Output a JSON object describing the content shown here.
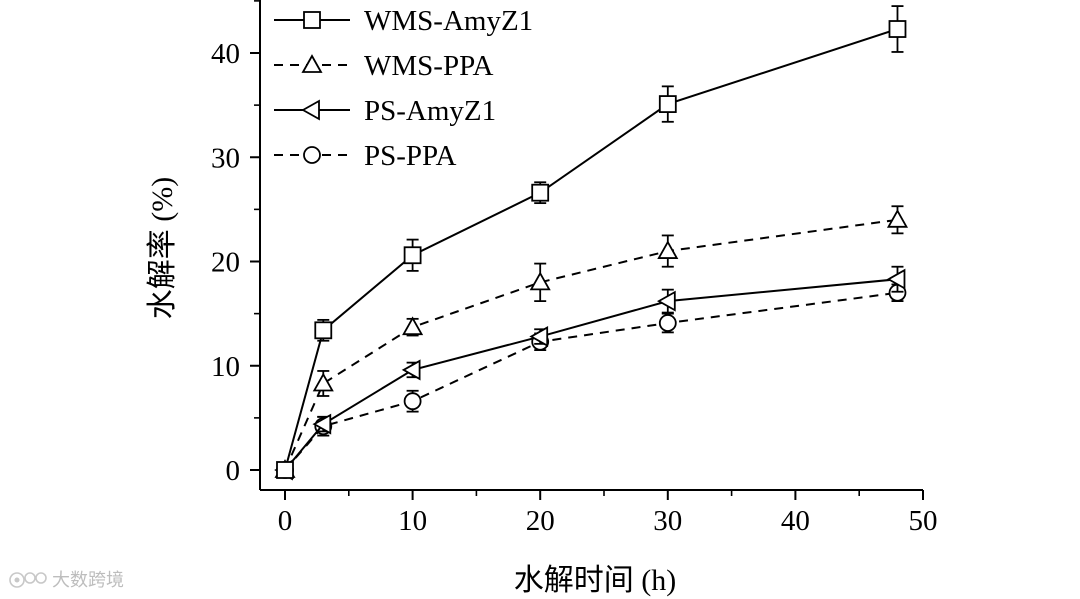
{
  "chart_data": {
    "type": "line",
    "xlabel": "水解时间 (h)",
    "ylabel": "水解率 (%)",
    "xlim": [
      -2,
      50
    ],
    "ylim": [
      -2,
      45
    ],
    "xticks": [
      0,
      10,
      20,
      30,
      40,
      50
    ],
    "yticks": [
      0,
      10,
      20,
      30,
      40
    ],
    "legend_position": "top-left",
    "grid": false,
    "series": [
      {
        "name": "WMS-AmyZ1",
        "marker": "square",
        "dash": "solid",
        "x": [
          0,
          3,
          10,
          20,
          30,
          48
        ],
        "y": [
          0,
          13.4,
          20.6,
          26.6,
          35.1,
          42.3
        ],
        "err": [
          0,
          1.0,
          1.5,
          1.0,
          1.7,
          2.2
        ]
      },
      {
        "name": "WMS-PPA",
        "marker": "triangle-up",
        "dash": "dashed",
        "x": [
          0,
          3,
          10,
          20,
          30,
          48
        ],
        "y": [
          0,
          8.3,
          13.7,
          18.0,
          21.0,
          24.0
        ],
        "err": [
          0,
          1.2,
          0.8,
          1.8,
          1.5,
          1.3
        ]
      },
      {
        "name": "PS-AmyZ1",
        "marker": "triangle-left",
        "dash": "solid",
        "x": [
          0,
          3,
          10,
          20,
          30,
          48
        ],
        "y": [
          0,
          4.4,
          9.6,
          12.8,
          16.2,
          18.3
        ],
        "err": [
          0,
          0.7,
          0.7,
          0.7,
          1.1,
          1.2
        ]
      },
      {
        "name": "PS-PPA",
        "marker": "circle",
        "dash": "dashed",
        "x": [
          0,
          3,
          10,
          20,
          30,
          48
        ],
        "y": [
          0,
          4.2,
          6.6,
          12.3,
          14.1,
          17.0
        ],
        "err": [
          0,
          0.9,
          1.0,
          0.8,
          0.9,
          0.8
        ]
      }
    ]
  },
  "watermark": {
    "text": "大数跨境",
    "icon": "weibo-logo"
  }
}
